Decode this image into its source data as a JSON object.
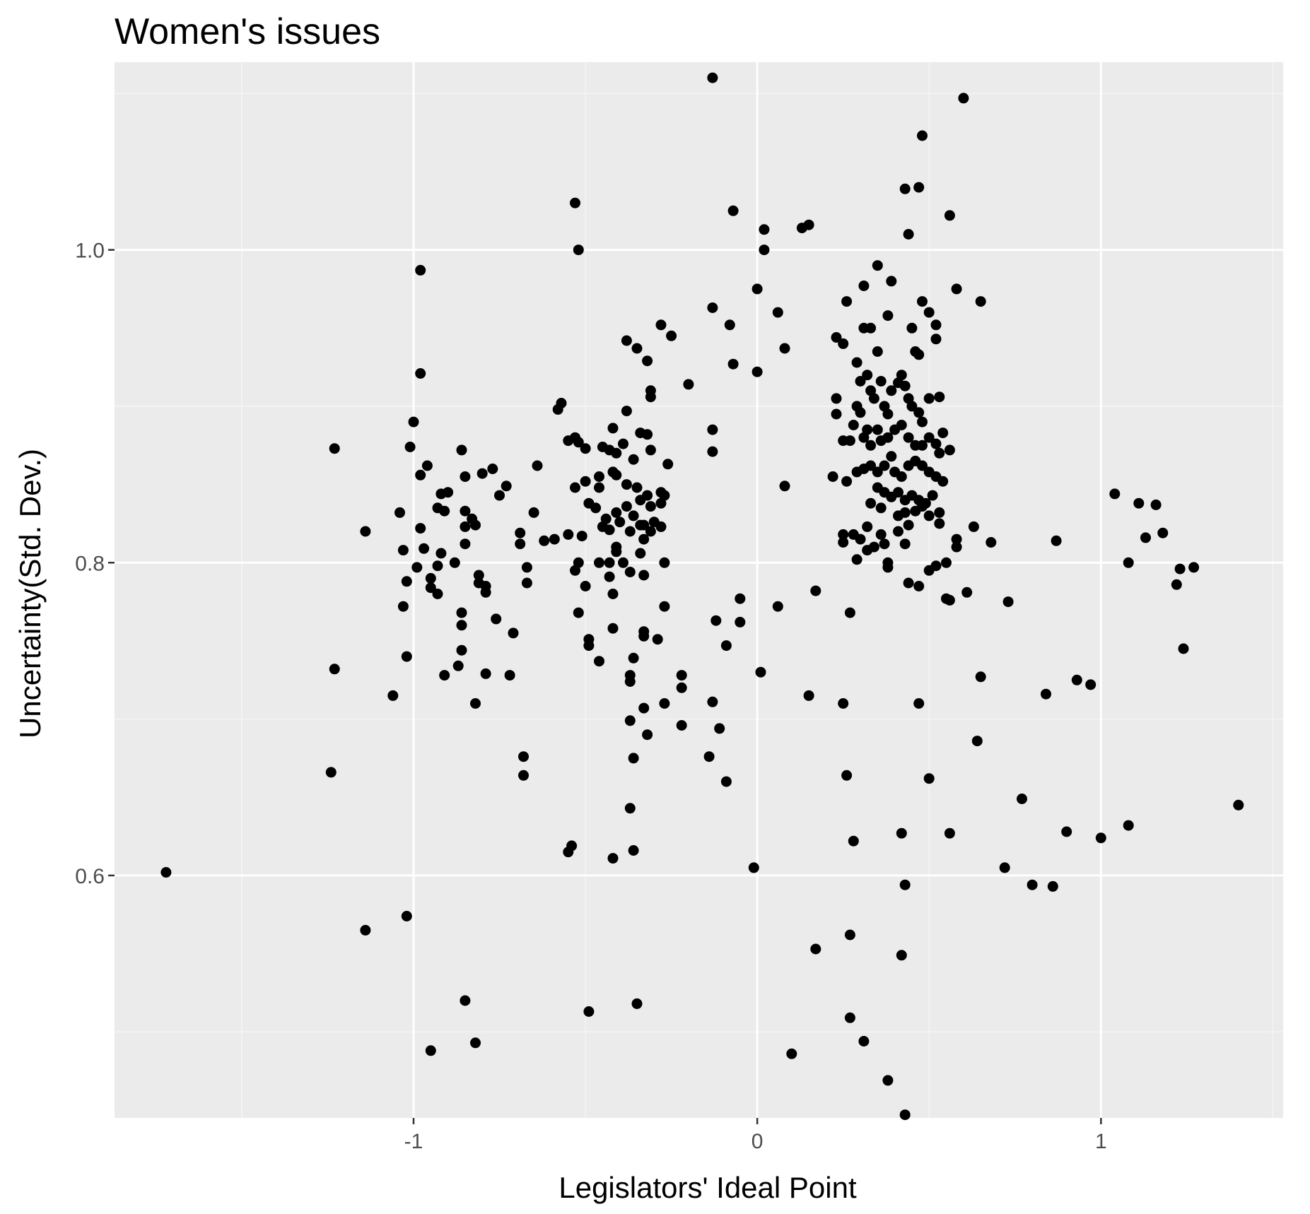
{
  "colors": {
    "panel_background": "#ebebeb",
    "grid_major": "#ffffff",
    "grid_minor": "#f5f5f5",
    "point": "#000000",
    "tick_text": "#4d4d4d",
    "tick_mark": "#333333"
  },
  "chart_data": {
    "type": "scatter",
    "title": "Women's issues",
    "xlabel": "Legislators' Ideal Point",
    "ylabel": "Uncertainty(Std. Dev.)",
    "xlim": [
      -1.87,
      1.53
    ],
    "ylim": [
      0.445,
      1.12
    ],
    "x_ticks": [
      -1,
      0,
      1
    ],
    "x_tick_labels": [
      "-1",
      "0",
      "1"
    ],
    "x_minor_ticks": [
      -1.5,
      -0.5,
      0.5,
      1.5
    ],
    "y_ticks": [
      0.6,
      0.8,
      1.0
    ],
    "y_tick_labels": [
      "0.6",
      "0.8",
      "1.0"
    ],
    "y_minor_ticks": [
      0.5,
      0.7,
      0.9,
      1.1
    ],
    "grid": true,
    "points": [
      [
        -0.13,
        1.11
      ],
      [
        0.6,
        1.097
      ],
      [
        0.48,
        1.073
      ],
      [
        0.47,
        1.04
      ],
      [
        0.43,
        1.039
      ],
      [
        0.44,
        1.01
      ],
      [
        0.56,
        1.022
      ],
      [
        0.15,
        1.016
      ],
      [
        0.13,
        1.014
      ],
      [
        0.02,
        1.013
      ],
      [
        -0.07,
        1.025
      ],
      [
        -0.53,
        1.03
      ],
      [
        -0.52,
        1.0
      ],
      [
        0.02,
        1.0
      ],
      [
        0.58,
        0.975
      ],
      [
        0.65,
        0.967
      ],
      [
        -0.98,
        0.987
      ],
      [
        0.0,
        0.975
      ],
      [
        -0.13,
        0.963
      ],
      [
        0.06,
        0.96
      ],
      [
        0.26,
        0.967
      ],
      [
        0.31,
        0.977
      ],
      [
        0.35,
        0.99
      ],
      [
        0.39,
        0.98
      ],
      [
        0.48,
        0.967
      ],
      [
        0.5,
        0.96
      ],
      [
        0.52,
        0.952
      ],
      [
        0.38,
        0.958
      ],
      [
        -0.08,
        0.952
      ],
      [
        -0.28,
        0.952
      ],
      [
        -0.25,
        0.945
      ],
      [
        -0.38,
        0.942
      ],
      [
        -0.35,
        0.937
      ],
      [
        0.08,
        0.937
      ],
      [
        0.23,
        0.944
      ],
      [
        0.25,
        0.94
      ],
      [
        0.29,
        0.928
      ],
      [
        0.31,
        0.95
      ],
      [
        0.33,
        0.95
      ],
      [
        0.35,
        0.935
      ],
      [
        0.45,
        0.95
      ],
      [
        0.46,
        0.935
      ],
      [
        0.47,
        0.933
      ],
      [
        0.52,
        0.943
      ],
      [
        -0.98,
        0.921
      ],
      [
        -0.07,
        0.927
      ],
      [
        0.0,
        0.922
      ],
      [
        -0.32,
        0.929
      ],
      [
        -0.2,
        0.914
      ],
      [
        -0.31,
        0.91
      ],
      [
        -0.31,
        0.906
      ],
      [
        -0.57,
        0.902
      ],
      [
        -0.58,
        0.898
      ],
      [
        -0.38,
        0.897
      ],
      [
        -0.42,
        0.886
      ],
      [
        -0.34,
        0.883
      ],
      [
        -0.32,
        0.882
      ],
      [
        -0.13,
        0.885
      ],
      [
        -0.55,
        0.878
      ],
      [
        -0.52,
        0.877
      ],
      [
        -1.0,
        0.89
      ],
      [
        -1.01,
        0.874
      ],
      [
        -0.53,
        0.88
      ],
      [
        -0.5,
        0.873
      ],
      [
        -0.45,
        0.874
      ],
      [
        -0.43,
        0.872
      ],
      [
        -0.41,
        0.87
      ],
      [
        -0.39,
        0.876
      ],
      [
        -0.36,
        0.866
      ],
      [
        -0.31,
        0.872
      ],
      [
        -0.26,
        0.863
      ],
      [
        -0.13,
        0.871
      ],
      [
        -1.23,
        0.873
      ],
      [
        -0.86,
        0.872
      ],
      [
        -0.96,
        0.862
      ],
      [
        -0.98,
        0.856
      ],
      [
        -0.85,
        0.855
      ],
      [
        -0.8,
        0.857
      ],
      [
        -0.77,
        0.86
      ],
      [
        -0.73,
        0.849
      ],
      [
        -0.64,
        0.862
      ],
      [
        -0.75,
        0.843
      ],
      [
        -0.9,
        0.845
      ],
      [
        -0.92,
        0.844
      ],
      [
        -0.5,
        0.852
      ],
      [
        -0.53,
        0.848
      ],
      [
        -0.46,
        0.855
      ],
      [
        -0.42,
        0.858
      ],
      [
        -0.41,
        0.856
      ],
      [
        -0.38,
        0.85
      ],
      [
        -0.35,
        0.848
      ],
      [
        -0.32,
        0.843
      ],
      [
        -0.28,
        0.845
      ],
      [
        -0.27,
        0.843
      ],
      [
        -0.46,
        0.848
      ],
      [
        -1.04,
        0.832
      ],
      [
        -0.93,
        0.835
      ],
      [
        -0.91,
        0.833
      ],
      [
        -0.85,
        0.833
      ],
      [
        -0.83,
        0.828
      ],
      [
        -0.65,
        0.832
      ],
      [
        -0.49,
        0.838
      ],
      [
        -0.47,
        0.835
      ],
      [
        -0.44,
        0.828
      ],
      [
        -0.41,
        0.832
      ],
      [
        -0.38,
        0.836
      ],
      [
        -0.36,
        0.83
      ],
      [
        -0.34,
        0.84
      ],
      [
        -0.31,
        0.836
      ],
      [
        -0.28,
        0.838
      ],
      [
        -0.3,
        0.826
      ],
      [
        -0.33,
        0.824
      ],
      [
        -1.14,
        0.82
      ],
      [
        -0.98,
        0.822
      ],
      [
        -0.85,
        0.823
      ],
      [
        -0.82,
        0.824
      ],
      [
        -0.69,
        0.819
      ],
      [
        -0.69,
        0.812
      ],
      [
        -0.62,
        0.814
      ],
      [
        -0.59,
        0.815
      ],
      [
        -0.55,
        0.818
      ],
      [
        -0.51,
        0.817
      ],
      [
        -0.45,
        0.823
      ],
      [
        -0.43,
        0.821
      ],
      [
        -0.4,
        0.826
      ],
      [
        -0.41,
        0.81
      ],
      [
        -0.37,
        0.82
      ],
      [
        -0.34,
        0.824
      ],
      [
        -0.33,
        0.815
      ],
      [
        -0.31,
        0.82
      ],
      [
        -0.28,
        0.823
      ],
      [
        -0.85,
        0.812
      ],
      [
        -1.03,
        0.808
      ],
      [
        -0.97,
        0.809
      ],
      [
        -0.92,
        0.806
      ],
      [
        -0.99,
        0.797
      ],
      [
        -0.93,
        0.798
      ],
      [
        -0.88,
        0.8
      ],
      [
        -0.81,
        0.792
      ],
      [
        -0.81,
        0.787
      ],
      [
        -0.79,
        0.785
      ],
      [
        -0.79,
        0.781
      ],
      [
        -0.67,
        0.797
      ],
      [
        -0.67,
        0.787
      ],
      [
        -0.52,
        0.8
      ],
      [
        -0.53,
        0.795
      ],
      [
        -0.5,
        0.785
      ],
      [
        -0.46,
        0.8
      ],
      [
        -0.43,
        0.8
      ],
      [
        -0.41,
        0.807
      ],
      [
        -0.39,
        0.8
      ],
      [
        -0.37,
        0.794
      ],
      [
        -0.34,
        0.806
      ],
      [
        -0.33,
        0.792
      ],
      [
        -0.27,
        0.8
      ],
      [
        -0.43,
        0.791
      ],
      [
        -0.42,
        0.78
      ],
      [
        -1.02,
        0.788
      ],
      [
        -0.95,
        0.79
      ],
      [
        -0.95,
        0.784
      ],
      [
        -0.93,
        0.78
      ],
      [
        -1.03,
        0.772
      ],
      [
        -0.86,
        0.768
      ],
      [
        -0.86,
        0.76
      ],
      [
        -0.76,
        0.764
      ],
      [
        -0.71,
        0.755
      ],
      [
        -0.52,
        0.768
      ],
      [
        -0.49,
        0.751
      ],
      [
        -0.49,
        0.747
      ],
      [
        -0.42,
        0.758
      ],
      [
        -0.33,
        0.753
      ],
      [
        -0.33,
        0.756
      ],
      [
        -0.29,
        0.751
      ],
      [
        -0.27,
        0.772
      ],
      [
        -1.02,
        0.74
      ],
      [
        -0.86,
        0.744
      ],
      [
        -0.87,
        0.734
      ],
      [
        -0.46,
        0.737
      ],
      [
        -0.36,
        0.739
      ],
      [
        -1.23,
        0.732
      ],
      [
        -1.06,
        0.715
      ],
      [
        -0.91,
        0.728
      ],
      [
        -0.79,
        0.729
      ],
      [
        -0.72,
        0.728
      ],
      [
        -0.82,
        0.71
      ],
      [
        -0.37,
        0.728
      ],
      [
        -0.37,
        0.724
      ],
      [
        -0.22,
        0.728
      ],
      [
        -0.22,
        0.72
      ],
      [
        -0.27,
        0.71
      ],
      [
        -0.33,
        0.707
      ],
      [
        -0.37,
        0.699
      ],
      [
        -0.32,
        0.69
      ],
      [
        -0.22,
        0.696
      ],
      [
        -0.13,
        0.711
      ],
      [
        -0.11,
        0.694
      ],
      [
        -0.14,
        0.676
      ],
      [
        -1.24,
        0.666
      ],
      [
        -0.68,
        0.676
      ],
      [
        -0.68,
        0.664
      ],
      [
        -0.36,
        0.675
      ],
      [
        -0.09,
        0.66
      ],
      [
        -0.37,
        0.643
      ],
      [
        -0.54,
        0.619
      ],
      [
        -0.55,
        0.615
      ],
      [
        -0.42,
        0.611
      ],
      [
        -0.36,
        0.616
      ],
      [
        -0.01,
        0.605
      ],
      [
        -1.72,
        0.602
      ],
      [
        -1.02,
        0.574
      ],
      [
        -1.14,
        0.565
      ],
      [
        -0.85,
        0.52
      ],
      [
        -0.49,
        0.513
      ],
      [
        -0.35,
        0.518
      ],
      [
        -0.82,
        0.493
      ],
      [
        -0.95,
        0.488
      ],
      [
        -0.12,
        0.763
      ],
      [
        -0.09,
        0.747
      ],
      [
        -0.05,
        0.777
      ],
      [
        -0.05,
        0.762
      ],
      [
        0.06,
        0.772
      ],
      [
        0.17,
        0.782
      ],
      [
        0.27,
        0.768
      ],
      [
        0.15,
        0.715
      ],
      [
        0.25,
        0.71
      ],
      [
        0.01,
        0.73
      ],
      [
        0.08,
        0.849
      ],
      [
        0.23,
        0.905
      ],
      [
        0.23,
        0.895
      ],
      [
        0.25,
        0.878
      ],
      [
        0.27,
        0.878
      ],
      [
        0.28,
        0.888
      ],
      [
        0.29,
        0.9
      ],
      [
        0.3,
        0.896
      ],
      [
        0.3,
        0.916
      ],
      [
        0.32,
        0.92
      ],
      [
        0.33,
        0.91
      ],
      [
        0.34,
        0.905
      ],
      [
        0.36,
        0.916
      ],
      [
        0.37,
        0.9
      ],
      [
        0.38,
        0.895
      ],
      [
        0.39,
        0.91
      ],
      [
        0.41,
        0.915
      ],
      [
        0.42,
        0.92
      ],
      [
        0.43,
        0.913
      ],
      [
        0.44,
        0.905
      ],
      [
        0.45,
        0.9
      ],
      [
        0.47,
        0.896
      ],
      [
        0.48,
        0.89
      ],
      [
        0.5,
        0.905
      ],
      [
        0.53,
        0.906
      ],
      [
        0.31,
        0.88
      ],
      [
        0.32,
        0.885
      ],
      [
        0.33,
        0.875
      ],
      [
        0.35,
        0.885
      ],
      [
        0.36,
        0.878
      ],
      [
        0.38,
        0.88
      ],
      [
        0.4,
        0.885
      ],
      [
        0.42,
        0.888
      ],
      [
        0.44,
        0.88
      ],
      [
        0.46,
        0.875
      ],
      [
        0.48,
        0.875
      ],
      [
        0.5,
        0.88
      ],
      [
        0.52,
        0.876
      ],
      [
        0.54,
        0.883
      ],
      [
        0.56,
        0.872
      ],
      [
        0.53,
        0.87
      ],
      [
        0.22,
        0.855
      ],
      [
        0.26,
        0.852
      ],
      [
        0.29,
        0.858
      ],
      [
        0.31,
        0.86
      ],
      [
        0.33,
        0.862
      ],
      [
        0.35,
        0.858
      ],
      [
        0.37,
        0.862
      ],
      [
        0.39,
        0.868
      ],
      [
        0.4,
        0.858
      ],
      [
        0.42,
        0.855
      ],
      [
        0.44,
        0.862
      ],
      [
        0.46,
        0.865
      ],
      [
        0.48,
        0.862
      ],
      [
        0.5,
        0.858
      ],
      [
        0.52,
        0.855
      ],
      [
        0.54,
        0.852
      ],
      [
        0.35,
        0.848
      ],
      [
        0.37,
        0.845
      ],
      [
        0.39,
        0.842
      ],
      [
        0.41,
        0.845
      ],
      [
        0.43,
        0.84
      ],
      [
        0.45,
        0.843
      ],
      [
        0.47,
        0.84
      ],
      [
        0.49,
        0.838
      ],
      [
        0.51,
        0.843
      ],
      [
        0.33,
        0.838
      ],
      [
        0.36,
        0.835
      ],
      [
        0.41,
        0.83
      ],
      [
        0.43,
        0.832
      ],
      [
        0.46,
        0.833
      ],
      [
        0.48,
        0.836
      ],
      [
        0.5,
        0.83
      ],
      [
        0.53,
        0.832
      ],
      [
        0.32,
        0.823
      ],
      [
        0.36,
        0.818
      ],
      [
        0.41,
        0.82
      ],
      [
        0.44,
        0.824
      ],
      [
        0.53,
        0.825
      ],
      [
        0.25,
        0.818
      ],
      [
        0.25,
        0.813
      ],
      [
        0.28,
        0.818
      ],
      [
        0.3,
        0.815
      ],
      [
        0.32,
        0.808
      ],
      [
        0.34,
        0.81
      ],
      [
        0.37,
        0.812
      ],
      [
        0.43,
        0.812
      ],
      [
        0.58,
        0.815
      ],
      [
        0.58,
        0.81
      ],
      [
        0.63,
        0.823
      ],
      [
        0.68,
        0.813
      ],
      [
        0.29,
        0.802
      ],
      [
        0.38,
        0.8
      ],
      [
        0.38,
        0.797
      ],
      [
        0.5,
        0.795
      ],
      [
        0.52,
        0.798
      ],
      [
        0.55,
        0.8
      ],
      [
        0.44,
        0.787
      ],
      [
        0.47,
        0.785
      ],
      [
        0.55,
        0.777
      ],
      [
        0.56,
        0.776
      ],
      [
        0.61,
        0.781
      ],
      [
        0.73,
        0.775
      ],
      [
        0.47,
        0.71
      ],
      [
        0.65,
        0.727
      ],
      [
        0.64,
        0.686
      ],
      [
        0.26,
        0.664
      ],
      [
        0.5,
        0.662
      ],
      [
        0.28,
        0.622
      ],
      [
        0.42,
        0.627
      ],
      [
        0.56,
        0.627
      ],
      [
        0.43,
        0.594
      ],
      [
        0.72,
        0.605
      ],
      [
        0.77,
        0.649
      ],
      [
        0.8,
        0.594
      ],
      [
        0.84,
        0.716
      ],
      [
        0.86,
        0.593
      ],
      [
        0.87,
        0.814
      ],
      [
        0.9,
        0.628
      ],
      [
        0.93,
        0.725
      ],
      [
        0.97,
        0.722
      ],
      [
        0.17,
        0.553
      ],
      [
        0.27,
        0.562
      ],
      [
        0.42,
        0.549
      ],
      [
        0.27,
        0.509
      ],
      [
        0.31,
        0.494
      ],
      [
        0.1,
        0.486
      ],
      [
        0.38,
        0.469
      ],
      [
        0.43,
        0.447
      ],
      [
        1.0,
        0.624
      ],
      [
        1.04,
        0.844
      ],
      [
        1.08,
        0.8
      ],
      [
        1.08,
        0.632
      ],
      [
        1.11,
        0.838
      ],
      [
        1.13,
        0.816
      ],
      [
        1.16,
        0.837
      ],
      [
        1.18,
        0.819
      ],
      [
        1.22,
        0.786
      ],
      [
        1.23,
        0.796
      ],
      [
        1.24,
        0.745
      ],
      [
        1.27,
        0.797
      ],
      [
        1.4,
        0.645
      ]
    ]
  }
}
